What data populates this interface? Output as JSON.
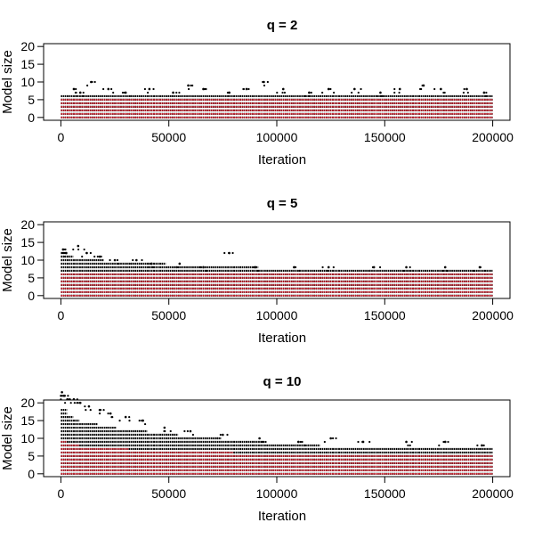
{
  "chart_data": [
    {
      "type": "scatter",
      "title": "q = 2",
      "xlabel": "Iteration",
      "ylabel": "Model size",
      "xlim": [
        0,
        200000
      ],
      "ylim": [
        0,
        20
      ],
      "x_ticks": [
        0,
        50000,
        100000,
        150000,
        200000
      ],
      "x_tick_labels": [
        "0",
        "50000",
        "100000",
        "150000",
        "200000"
      ],
      "y_ticks": [
        0,
        5,
        10,
        15,
        20
      ],
      "y_tick_labels": [
        "0",
        "5",
        "10",
        "15",
        "20"
      ],
      "series": [
        {
          "color": "#000000",
          "band_min": 0,
          "band_max": 6,
          "outliers": [
            [
              6000,
              8
            ],
            [
              9000,
              7
            ],
            [
              14000,
              10
            ],
            [
              22000,
              8
            ],
            [
              30000,
              7
            ],
            [
              41000,
              8
            ],
            [
              52000,
              7
            ],
            [
              59000,
              9
            ],
            [
              66000,
              8
            ],
            [
              78000,
              7
            ],
            [
              86000,
              8
            ],
            [
              94000,
              10
            ],
            [
              103000,
              8
            ],
            [
              115000,
              7
            ],
            [
              124000,
              8
            ],
            [
              136000,
              8
            ],
            [
              148000,
              7
            ],
            [
              157000,
              8
            ],
            [
              168000,
              9
            ],
            [
              176000,
              8
            ],
            [
              188000,
              8
            ],
            [
              196000,
              7
            ]
          ]
        },
        {
          "color": "#d01c2a",
          "band_min": 0,
          "band_max": 5
        }
      ]
    },
    {
      "type": "scatter",
      "title": "q = 5",
      "xlabel": "Iteration",
      "ylabel": "Model size",
      "xlim": [
        0,
        200000
      ],
      "ylim": [
        0,
        20
      ],
      "x_ticks": [
        0,
        50000,
        100000,
        150000,
        200000
      ],
      "x_tick_labels": [
        "0",
        "50000",
        "100000",
        "150000",
        "200000"
      ],
      "y_ticks": [
        0,
        5,
        10,
        15,
        20
      ],
      "y_tick_labels": [
        "0",
        "5",
        "10",
        "15",
        "20"
      ],
      "series": [
        {
          "color": "#000000",
          "band_min": 0,
          "band_start_max": 12,
          "band_end_max": 7,
          "outliers": [
            [
              1000,
              13
            ],
            [
              2500,
              12
            ],
            [
              8000,
              14
            ],
            [
              12000,
              12
            ],
            [
              18000,
              11
            ],
            [
              25000,
              10
            ],
            [
              35000,
              10
            ],
            [
              42000,
              9
            ],
            [
              55000,
              9
            ],
            [
              66000,
              8
            ],
            [
              78000,
              12
            ],
            [
              90000,
              8
            ],
            [
              108000,
              8
            ],
            [
              124000,
              8
            ],
            [
              145000,
              8
            ],
            [
              160000,
              8
            ],
            [
              178000,
              8
            ],
            [
              194000,
              8
            ]
          ]
        },
        {
          "color": "#d01c2a",
          "band_min": 0,
          "band_max": 6
        }
      ]
    },
    {
      "type": "scatter",
      "title": "q = 10",
      "xlabel": "Iteration",
      "ylabel": "Model size",
      "xlim": [
        0,
        200000
      ],
      "ylim": [
        0,
        20
      ],
      "x_ticks": [
        0,
        50000,
        100000,
        150000,
        200000
      ],
      "x_tick_labels": [
        "0",
        "50000",
        "100000",
        "150000",
        "200000"
      ],
      "y_ticks": [
        0,
        5,
        10,
        15,
        20
      ],
      "y_tick_labels": [
        "0",
        "5",
        "10",
        "15",
        "20"
      ],
      "series": [
        {
          "color": "#000000",
          "band_min": 0,
          "band_start_max": 18,
          "band_end_max": 7,
          "outliers": [
            [
              500,
              23
            ],
            [
              1500,
              22
            ],
            [
              3000,
              21
            ],
            [
              6000,
              21
            ],
            [
              9000,
              20
            ],
            [
              13000,
              19
            ],
            [
              18000,
              18
            ],
            [
              23000,
              17
            ],
            [
              30000,
              16
            ],
            [
              38000,
              15
            ],
            [
              48000,
              13
            ],
            [
              60000,
              12
            ],
            [
              75000,
              11
            ],
            [
              92000,
              10
            ],
            [
              110000,
              9
            ],
            [
              125000,
              10
            ],
            [
              140000,
              9
            ],
            [
              160000,
              9
            ],
            [
              178000,
              9
            ],
            [
              195000,
              8
            ]
          ]
        },
        {
          "color": "#d01c2a",
          "band_min": 0,
          "band_start_max": 9,
          "band_end_max": 5
        }
      ]
    }
  ]
}
